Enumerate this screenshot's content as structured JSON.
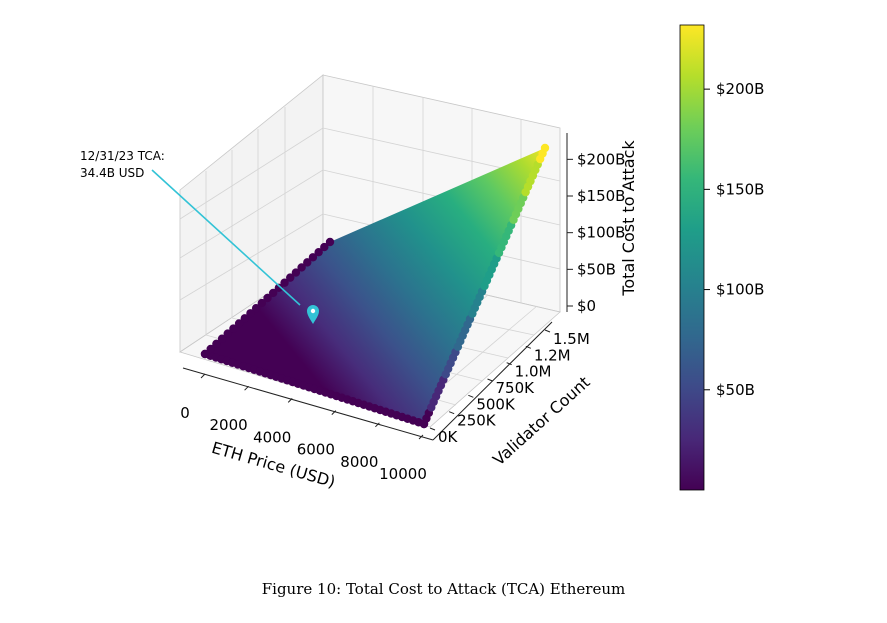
{
  "figure": {
    "caption": "Figure 10: Total Cost to Attack (TCA) Ethereum"
  },
  "chart_data": {
    "type": "scatter",
    "subtype": "3d-surface-scatter",
    "title": "",
    "xlabel": "ETH Price (USD)",
    "ylabel": "Validator Count",
    "zlabel": "Total Cost to Attack",
    "x_ticks": [
      "0",
      "2000",
      "4000",
      "6000",
      "8000",
      "10000"
    ],
    "x_tick_values": [
      0,
      2000,
      4000,
      6000,
      8000,
      10000
    ],
    "y_ticks": [
      "0K",
      "250K",
      "500K",
      "750K",
      "1.0M",
      "1.2M",
      "1.5M"
    ],
    "y_tick_values": [
      0,
      250000,
      500000,
      750000,
      1000000,
      1250000,
      1500000
    ],
    "z_ticks": [
      "$0",
      "$50B",
      "$100B",
      "$150B",
      "$200B"
    ],
    "z_tick_values": [
      0,
      50,
      100,
      150,
      200
    ],
    "xlim": [
      0,
      10000
    ],
    "ylim": [
      0,
      1500000
    ],
    "zlim": [
      0,
      240
    ],
    "data_extent": {
      "eth_price": [
        0,
        10000
      ],
      "validator_count": [
        0,
        1500000
      ],
      "tca_billion_usd_max": 232
    },
    "grid": true,
    "colormap": "viridis",
    "colorbar": {
      "ticks": [
        "$50B",
        "$100B",
        "$150B",
        "$200B"
      ],
      "tick_values": [
        50,
        100,
        150,
        200
      ],
      "range": [
        0,
        232
      ],
      "position": "right"
    },
    "annotation": {
      "text_line1": "12/31/23 TCA:",
      "text_line2": "34.4B USD",
      "value_billion_usd": 34.4,
      "marker": "map-pin",
      "color": "#33c3d6"
    },
    "colors": {
      "viridis": [
        "#440154",
        "#482878",
        "#3e4a89",
        "#31688e",
        "#26828e",
        "#1f9e89",
        "#35b779",
        "#6ece58",
        "#b5de2b",
        "#fde725"
      ]
    }
  }
}
